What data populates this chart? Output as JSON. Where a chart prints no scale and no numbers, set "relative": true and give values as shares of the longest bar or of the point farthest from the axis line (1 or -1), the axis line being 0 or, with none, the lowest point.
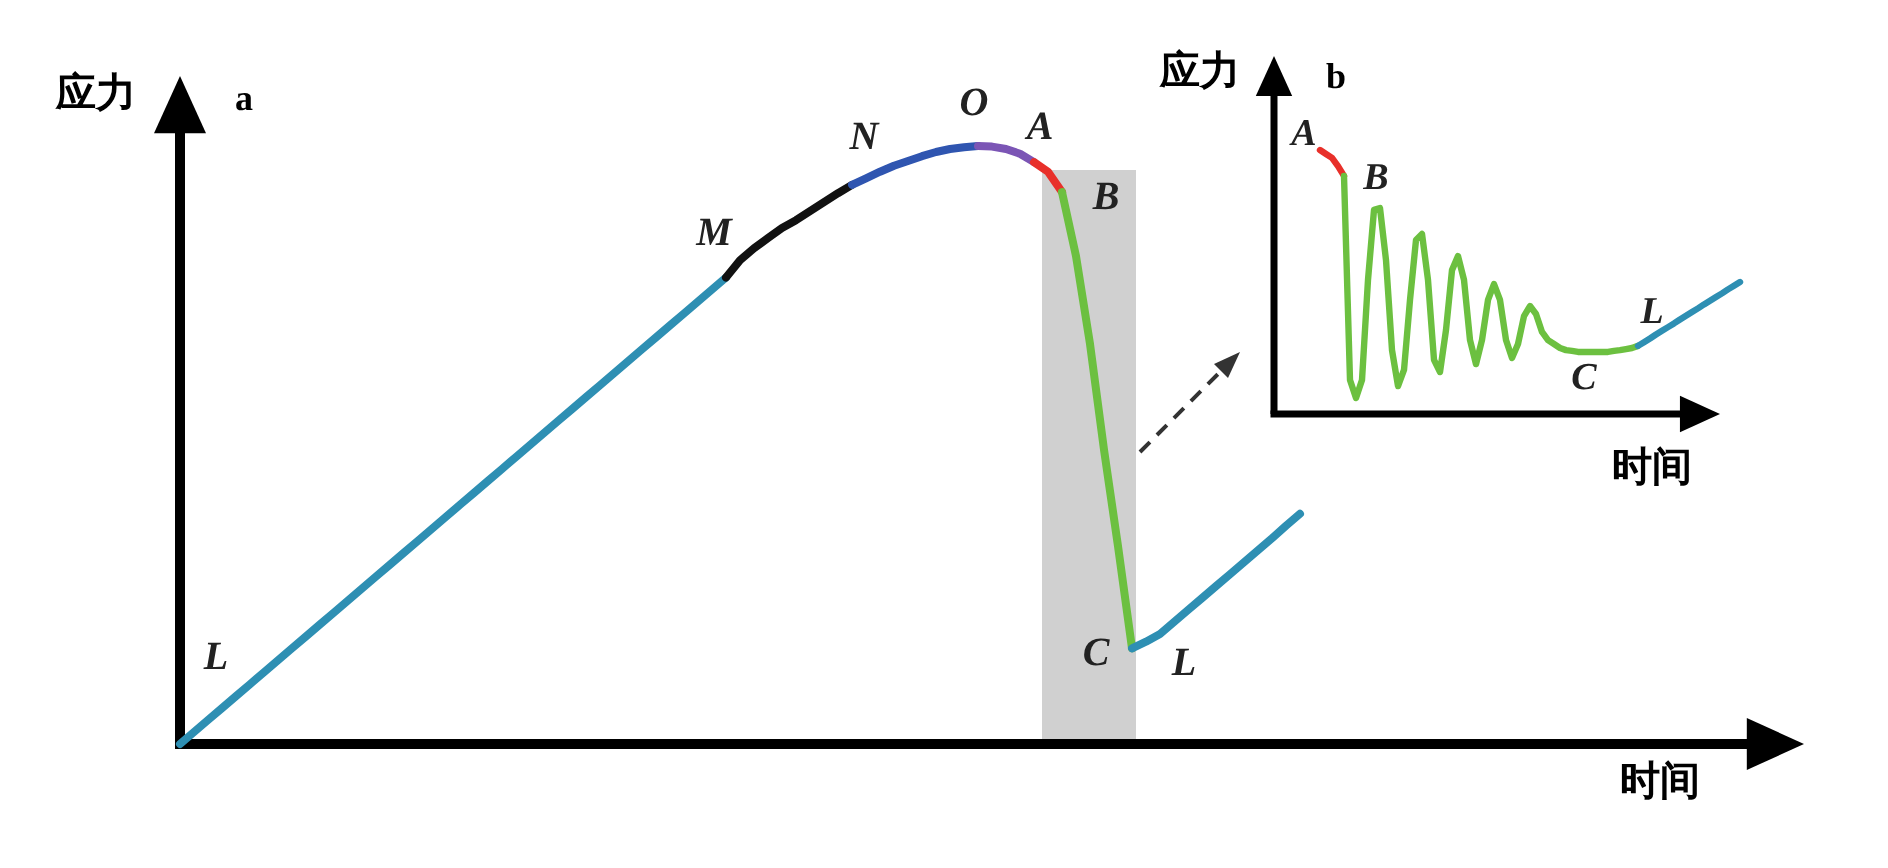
{
  "chart_data": [
    {
      "type": "line",
      "title": "a",
      "xlabel": "时间",
      "ylabel": "应力",
      "relative": true,
      "categories": [
        null,
        null,
        null,
        null,
        null,
        null,
        null,
        null,
        null,
        null,
        null,
        null,
        null,
        null,
        null,
        null,
        null,
        null,
        null,
        null,
        null,
        null,
        null,
        null,
        null,
        null,
        null,
        null,
        null,
        null,
        null,
        null,
        null,
        null,
        null,
        null,
        null,
        null,
        null,
        null,
        null,
        null,
        null,
        null,
        null,
        null,
        null,
        null,
        null,
        null,
        null,
        null,
        null,
        null,
        null,
        null,
        null,
        null,
        null,
        null,
        null,
        null,
        null,
        null,
        null,
        null,
        null,
        null,
        null,
        null,
        null,
        null,
        null,
        null,
        null,
        null,
        null,
        null,
        null,
        null,
        null,
        null,
        null,
        null,
        null,
        null,
        null,
        null,
        null,
        null,
        null,
        null,
        null,
        null,
        null,
        null,
        null,
        null,
        null,
        null,
        null,
        null,
        null,
        null,
        null,
        null,
        null,
        null,
        null,
        null,
        null,
        null,
        null,
        null,
        null,
        null
      ],
      "series": [
        {
          "color": "#2e8fb3",
          "values": [
            0,
            0.02,
            0.04,
            0.06,
            0.08,
            0.1,
            0.12,
            0.14,
            0.16,
            0.18,
            0.2,
            0.22,
            0.24,
            0.26,
            0.28,
            0.3,
            0.32,
            0.34,
            0.36,
            0.38,
            0.4,
            0.42,
            0.44,
            0.46,
            0.48,
            0.5,
            0.52,
            0.54,
            0.56,
            0.58,
            0.6,
            0.62,
            0.64,
            0.66,
            0.68,
            0.7,
            0.72,
            0.74,
            0.76,
            0.78,
            null,
            null,
            null,
            null,
            null,
            null,
            null,
            null,
            null,
            null,
            null,
            null,
            null,
            null,
            null,
            null,
            null,
            null,
            null,
            null,
            null,
            null,
            null,
            null,
            null,
            null,
            null,
            null,
            null,
            null,
            null,
            null,
            null,
            null,
            null,
            null,
            null,
            null,
            null,
            null,
            null,
            null,
            null,
            null,
            null,
            null,
            null,
            null,
            null,
            null,
            null,
            null,
            null,
            null,
            null,
            null,
            null,
            null,
            null,
            null,
            null,
            null,
            null,
            null,
            null,
            null,
            null,
            null,
            null,
            null,
            null,
            null,
            null,
            null,
            null,
            null
          ]
        },
        {
          "color": "#111111",
          "values": [
            null,
            null,
            null,
            null,
            null,
            null,
            null,
            null,
            null,
            null,
            null,
            null,
            null,
            null,
            null,
            null,
            null,
            null,
            null,
            null,
            null,
            null,
            null,
            null,
            null,
            null,
            null,
            null,
            null,
            null,
            null,
            null,
            null,
            null,
            null,
            null,
            null,
            null,
            null,
            0.78,
            0.809,
            0.829,
            0.846,
            0.863,
            0.876,
            0.891,
            0.906,
            0.921,
            0.935,
            null,
            null,
            null,
            null,
            null,
            null,
            null,
            null,
            null,
            null,
            null,
            null,
            null,
            null,
            null,
            null,
            null,
            null,
            null,
            null,
            null,
            null,
            null,
            null,
            null,
            null,
            null,
            null,
            null,
            null,
            null,
            null,
            null,
            null,
            null,
            null,
            null,
            null,
            null,
            null,
            null,
            null,
            null,
            null,
            null,
            null,
            null,
            null,
            null,
            null,
            null,
            null,
            null,
            null,
            null,
            null,
            null,
            null,
            null,
            null,
            null,
            null,
            null,
            null,
            null,
            null,
            null
          ]
        },
        {
          "color": "#2f55b0",
          "values": [
            null,
            null,
            null,
            null,
            null,
            null,
            null,
            null,
            null,
            null,
            null,
            null,
            null,
            null,
            null,
            null,
            null,
            null,
            null,
            null,
            null,
            null,
            null,
            null,
            null,
            null,
            null,
            null,
            null,
            null,
            null,
            null,
            null,
            null,
            null,
            null,
            null,
            null,
            null,
            null,
            null,
            null,
            null,
            null,
            null,
            null,
            null,
            null,
            0.935,
            0.946,
            0.957,
            0.967,
            0.975,
            0.983,
            0.99,
            0.995,
            0.998,
            1.0,
            null,
            null,
            null,
            null,
            null,
            null,
            null,
            null,
            null,
            null,
            null,
            null,
            null,
            null,
            null,
            null,
            null,
            null,
            null,
            null,
            null,
            null,
            null,
            null,
            null,
            null,
            null,
            null,
            null,
            null,
            null,
            null,
            null,
            null,
            null,
            null,
            null,
            null,
            null,
            null,
            null,
            null,
            null,
            null,
            null,
            null,
            null,
            null,
            null,
            null,
            null,
            null,
            null,
            null,
            null,
            null,
            null,
            null
          ]
        },
        {
          "color": "#7b55b5",
          "values": [
            null,
            null,
            null,
            null,
            null,
            null,
            null,
            null,
            null,
            null,
            null,
            null,
            null,
            null,
            null,
            null,
            null,
            null,
            null,
            null,
            null,
            null,
            null,
            null,
            null,
            null,
            null,
            null,
            null,
            null,
            null,
            null,
            null,
            null,
            null,
            null,
            null,
            null,
            null,
            null,
            null,
            null,
            null,
            null,
            null,
            null,
            null,
            null,
            null,
            null,
            null,
            null,
            null,
            null,
            null,
            null,
            null,
            1.0,
            0.999,
            0.995,
            0.987,
            0.973,
            null,
            null,
            null,
            null,
            null,
            null,
            null,
            null,
            null,
            null,
            null,
            null,
            null,
            null,
            null,
            null,
            null,
            null,
            null,
            null,
            null,
            null,
            null,
            null,
            null,
            null,
            null,
            null,
            null,
            null,
            null,
            null,
            null,
            null,
            null,
            null,
            null,
            null,
            null,
            null,
            null,
            null,
            null,
            null,
            null,
            null,
            null,
            null,
            null,
            null,
            null,
            null,
            null,
            null
          ]
        },
        {
          "color": "#e8302a",
          "values": [
            null,
            null,
            null,
            null,
            null,
            null,
            null,
            null,
            null,
            null,
            null,
            null,
            null,
            null,
            null,
            null,
            null,
            null,
            null,
            null,
            null,
            null,
            null,
            null,
            null,
            null,
            null,
            null,
            null,
            null,
            null,
            null,
            null,
            null,
            null,
            null,
            null,
            null,
            null,
            null,
            null,
            null,
            null,
            null,
            null,
            null,
            null,
            null,
            null,
            null,
            null,
            null,
            null,
            null,
            null,
            null,
            null,
            null,
            null,
            null,
            null,
            0.973,
            0.957,
            0.923,
            null,
            null,
            null,
            null,
            null,
            null,
            null,
            null,
            null,
            null,
            null,
            null,
            null,
            null,
            null,
            null,
            null,
            null,
            null,
            null,
            null,
            null,
            null,
            null,
            null,
            null,
            null,
            null,
            null,
            null,
            null,
            null,
            null,
            null,
            null,
            null,
            null,
            null,
            null,
            null,
            null,
            null,
            null,
            null,
            null,
            null,
            null,
            null,
            null,
            null,
            null,
            null
          ]
        },
        {
          "color": "#6cc040",
          "values": [
            null,
            null,
            null,
            null,
            null,
            null,
            null,
            null,
            null,
            null,
            null,
            null,
            null,
            null,
            null,
            null,
            null,
            null,
            null,
            null,
            null,
            null,
            null,
            null,
            null,
            null,
            null,
            null,
            null,
            null,
            null,
            null,
            null,
            null,
            null,
            null,
            null,
            null,
            null,
            null,
            null,
            null,
            null,
            null,
            null,
            null,
            null,
            null,
            null,
            null,
            null,
            null,
            null,
            null,
            null,
            null,
            null,
            null,
            null,
            null,
            null,
            null,
            null,
            0.923,
            0.816,
            0.669,
            0.492,
            0.331,
            0.16,
            null,
            null,
            null,
            null,
            null,
            null,
            null,
            null,
            null,
            null,
            null,
            null,
            null,
            null,
            null,
            null,
            null,
            null,
            null,
            null,
            null,
            null,
            null,
            null,
            null,
            null,
            null,
            null,
            null,
            null,
            null,
            null,
            null,
            null,
            null,
            null,
            null,
            null,
            null,
            null,
            null,
            null,
            null,
            null,
            null,
            null,
            null
          ]
        },
        {
          "color": "#2e8fb3",
          "values": [
            null,
            null,
            null,
            null,
            null,
            null,
            null,
            null,
            null,
            null,
            null,
            null,
            null,
            null,
            null,
            null,
            null,
            null,
            null,
            null,
            null,
            null,
            null,
            null,
            null,
            null,
            null,
            null,
            null,
            null,
            null,
            null,
            null,
            null,
            null,
            null,
            null,
            null,
            null,
            null,
            null,
            null,
            null,
            null,
            null,
            null,
            null,
            null,
            null,
            null,
            null,
            null,
            null,
            null,
            null,
            null,
            null,
            null,
            null,
            null,
            null,
            null,
            null,
            null,
            null,
            null,
            null,
            null,
            0.16,
            0.171,
            0.184,
            0.204,
            0.224,
            0.244,
            0.264,
            0.284,
            0.304,
            0.324,
            0.344,
            0.365,
            0.385,
            null,
            null,
            null,
            null,
            null,
            null,
            null,
            null,
            null,
            null,
            null,
            null,
            null,
            null,
            null,
            null,
            null,
            null,
            null,
            null,
            null,
            null,
            null,
            null,
            null,
            null,
            null,
            null,
            null,
            null,
            null,
            null,
            null,
            null,
            null
          ]
        }
      ],
      "annotations": [
        "L",
        "M",
        "N",
        "O",
        "A",
        "B",
        "C",
        "L"
      ]
    },
    {
      "type": "line",
      "title": "b",
      "xlabel": "时间",
      "ylabel": "应力",
      "relative": true,
      "categories": [
        null,
        null,
        null,
        null,
        null,
        null,
        null,
        null,
        null,
        null,
        null,
        null,
        null,
        null,
        null,
        null,
        null,
        null,
        null,
        null,
        null,
        null,
        null,
        null,
        null,
        null,
        null,
        null,
        null,
        null,
        null,
        null,
        null,
        null,
        null,
        null,
        null,
        null,
        null,
        null,
        null,
        null,
        null,
        null,
        null,
        null,
        null,
        null,
        null,
        null,
        null,
        null,
        null,
        null,
        null,
        null,
        null,
        null,
        null,
        null,
        null,
        null,
        null,
        null,
        null,
        null,
        null,
        null,
        null,
        null,
        null
      ],
      "series": [
        {
          "color": "#e8302a",
          "values": [
            1.0,
            0.985,
            0.97,
            0.939,
            0.902,
            null,
            null,
            null,
            null,
            null,
            null,
            null,
            null,
            null,
            null,
            null,
            null,
            null,
            null,
            null,
            null,
            null,
            null,
            null,
            null,
            null,
            null,
            null,
            null,
            null,
            null,
            null,
            null,
            null,
            null,
            null,
            null,
            null,
            null,
            null,
            null,
            null,
            null,
            null,
            null,
            null,
            null,
            null,
            null,
            null,
            null,
            null,
            null,
            null,
            null,
            null,
            null,
            null,
            null,
            null,
            null,
            null,
            null,
            null,
            null,
            null,
            null,
            null,
            null,
            null,
            null
          ]
        },
        {
          "color": "#6cc040",
          "values": [
            null,
            null,
            null,
            null,
            0.902,
            0.129,
            0.061,
            0.129,
            0.508,
            0.773,
            0.78,
            0.583,
            0.242,
            0.106,
            0.167,
            0.432,
            0.659,
            0.682,
            0.508,
            0.205,
            0.159,
            0.318,
            0.545,
            0.598,
            0.508,
            0.28,
            0.189,
            0.28,
            0.432,
            0.492,
            0.432,
            0.28,
            0.212,
            0.265,
            0.371,
            0.409,
            0.379,
            0.311,
            0.28,
            0.265,
            0.25,
            0.242,
            0.239,
            0.235,
            0.235,
            0.235,
            0.235,
            0.235,
            0.235,
            0.239,
            0.242,
            0.246,
            0.25,
            0.258,
            null,
            null,
            null,
            null,
            null,
            null,
            null,
            null,
            null,
            null,
            null,
            null,
            null,
            null,
            null,
            null,
            null
          ]
        },
        {
          "color": "#2e8fb3",
          "values": [
            null,
            null,
            null,
            null,
            null,
            null,
            null,
            null,
            null,
            null,
            null,
            null,
            null,
            null,
            null,
            null,
            null,
            null,
            null,
            null,
            null,
            null,
            null,
            null,
            null,
            null,
            null,
            null,
            null,
            null,
            null,
            null,
            null,
            null,
            null,
            null,
            null,
            null,
            null,
            null,
            null,
            null,
            null,
            null,
            null,
            null,
            null,
            null,
            null,
            null,
            null,
            null,
            null,
            0.258,
            0.272,
            0.286,
            0.301,
            0.315,
            0.329,
            0.343,
            0.358,
            0.372,
            0.386,
            0.4,
            0.415,
            0.429,
            0.443,
            0.457,
            0.472,
            0.486,
            0.5
          ]
        }
      ],
      "annotations": [
        "A",
        "B",
        "C",
        "L"
      ]
    }
  ]
}
